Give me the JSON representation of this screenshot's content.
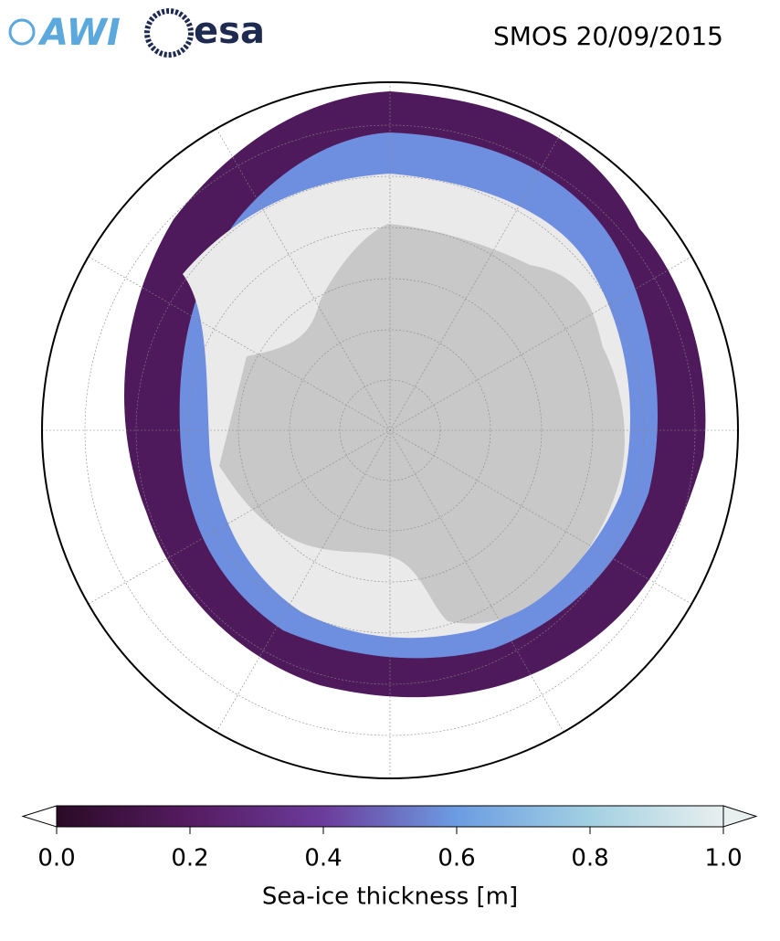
{
  "header": {
    "logos": [
      "AWI",
      "esa"
    ],
    "title": "SMOS 20/09/2015"
  },
  "colorbar": {
    "label": "Sea-ice thickness [m]",
    "lim": [
      0,
      1
    ],
    "ticks": [
      {
        "value": 0,
        "label": "0.0"
      },
      {
        "value": 0.2,
        "label": "0.2"
      },
      {
        "value": 0.4,
        "label": "0.4"
      },
      {
        "value": 0.6,
        "label": "0.6"
      },
      {
        "value": 0.8,
        "label": "0.8"
      },
      {
        "value": 1,
        "label": "1.0"
      }
    ],
    "colors": [
      "#2a0a26",
      "#561c62",
      "#6c3c9c",
      "#6c9ce2",
      "#a2d0e2",
      "#e8efef"
    ]
  }
}
